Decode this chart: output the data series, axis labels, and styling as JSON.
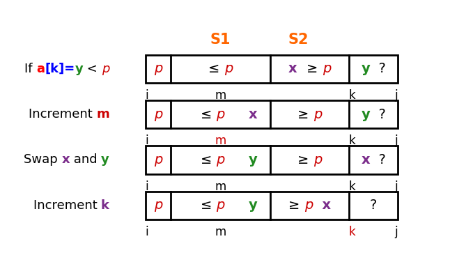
{
  "bg_color": "#FFFFFF",
  "s1_label": "S1",
  "s2_label": "S2",
  "header_color": "#FF6600",
  "fig_width": 6.46,
  "fig_height": 3.66,
  "dpi": 100,
  "rows": [
    {
      "label": [
        {
          "t": "If ",
          "c": "#000000",
          "w": "normal",
          "s": "normal"
        },
        {
          "t": "a",
          "c": "#FF0000",
          "w": "bold",
          "s": "normal"
        },
        {
          "t": "[k]=",
          "c": "#0000FF",
          "w": "bold",
          "s": "normal"
        },
        {
          "t": "y",
          "c": "#228B22",
          "w": "bold",
          "s": "normal"
        },
        {
          "t": " < ",
          "c": "#000000",
          "w": "normal",
          "s": "normal"
        },
        {
          "t": "p",
          "c": "#CC0000",
          "w": "normal",
          "s": "italic"
        }
      ],
      "cell0": [
        {
          "t": "p",
          "c": "#CC0000",
          "s": "italic",
          "w": "normal"
        }
      ],
      "cell1": [
        {
          "t": "≤ p",
          "c_list": [
            "#000000",
            "#CC0000"
          ],
          "s_list": [
            "normal",
            "italic"
          ],
          "w_list": [
            "normal",
            "normal"
          ]
        }
      ],
      "cell1_simple": {
        "t": "≤ p",
        "c1": "#000000",
        "c2": "#CC0000"
      },
      "cell2_left": {
        "t": "x",
        "c": "#7B2D8B",
        "s": "normal",
        "w": "bold"
      },
      "cell2_right": {
        "t": "≥ p",
        "c1": "#000000",
        "c2": "#CC0000"
      },
      "cell3_left": {
        "t": "y",
        "c": "#228B22",
        "s": "normal",
        "w": "bold"
      },
      "cell3_right": {
        "t": "?",
        "c": "#000000",
        "s": "normal",
        "w": "normal"
      },
      "idx": [
        {
          "t": "i",
          "c": "#000000",
          "cell": 0,
          "align": "left"
        },
        {
          "t": "m",
          "c": "#000000",
          "cell": 2,
          "align": "center"
        },
        {
          "t": "k",
          "c": "#000000",
          "cell": 3,
          "align": "left"
        },
        {
          "t": "j",
          "c": "#000000",
          "cell": 4,
          "align": "right"
        }
      ]
    },
    {
      "label": [
        {
          "t": "Increment ",
          "c": "#000000",
          "w": "normal",
          "s": "normal"
        },
        {
          "t": "m",
          "c": "#CC0000",
          "w": "bold",
          "s": "normal"
        }
      ],
      "cell0": [
        {
          "t": "p",
          "c": "#CC0000",
          "s": "italic",
          "w": "normal"
        }
      ],
      "cell2_left": {
        "t": "x",
        "c": "#7B2D8B",
        "s": "normal",
        "w": "bold"
      },
      "cell2_right": {
        "t": "≥ p",
        "c1": "#000000",
        "c2": "#CC0000"
      },
      "cell3_left": {
        "t": "y",
        "c": "#228B22",
        "s": "normal",
        "w": "bold"
      },
      "cell3_right": {
        "t": "?",
        "c": "#000000",
        "s": "normal",
        "w": "normal"
      },
      "cell1_simple": {
        "t": "≤ p",
        "c1": "#000000",
        "c2": "#CC0000"
      },
      "idx": [
        {
          "t": "i",
          "c": "#000000",
          "cell": 0,
          "align": "left"
        },
        {
          "t": "m",
          "c": "#CC0000",
          "cell": 2,
          "align": "center"
        },
        {
          "t": "k",
          "c": "#000000",
          "cell": 3,
          "align": "left"
        },
        {
          "t": "j",
          "c": "#000000",
          "cell": 4,
          "align": "right"
        }
      ]
    },
    {
      "label": [
        {
          "t": "Swap ",
          "c": "#000000",
          "w": "normal",
          "s": "normal"
        },
        {
          "t": "x",
          "c": "#7B2D8B",
          "w": "bold",
          "s": "normal"
        },
        {
          "t": " and ",
          "c": "#000000",
          "w": "normal",
          "s": "normal"
        },
        {
          "t": "y",
          "c": "#228B22",
          "w": "bold",
          "s": "normal"
        }
      ],
      "cell0": [
        {
          "t": "p",
          "c": "#CC0000",
          "s": "italic",
          "w": "normal"
        }
      ],
      "cell2_left": {
        "t": "y",
        "c": "#228B22",
        "s": "normal",
        "w": "bold"
      },
      "cell2_right": {
        "t": "≥ p",
        "c1": "#000000",
        "c2": "#CC0000"
      },
      "cell3_left": {
        "t": "x",
        "c": "#7B2D8B",
        "s": "normal",
        "w": "bold"
      },
      "cell3_right": {
        "t": "?",
        "c": "#000000",
        "s": "normal",
        "w": "normal"
      },
      "cell1_simple": {
        "t": "≤ p",
        "c1": "#000000",
        "c2": "#CC0000"
      },
      "idx": [
        {
          "t": "i",
          "c": "#000000",
          "cell": 0,
          "align": "left"
        },
        {
          "t": "m",
          "c": "#000000",
          "cell": 2,
          "align": "center"
        },
        {
          "t": "k",
          "c": "#000000",
          "cell": 3,
          "align": "left"
        },
        {
          "t": "j",
          "c": "#000000",
          "cell": 4,
          "align": "right"
        }
      ]
    },
    {
      "label": [
        {
          "t": "Increment ",
          "c": "#000000",
          "w": "normal",
          "s": "normal"
        },
        {
          "t": "k",
          "c": "#7B2D8B",
          "w": "bold",
          "s": "normal"
        }
      ],
      "cell0": [
        {
          "t": "p",
          "c": "#CC0000",
          "s": "italic",
          "w": "normal"
        }
      ],
      "cell2_left": {
        "t": "y",
        "c": "#228B22",
        "s": "normal",
        "w": "bold"
      },
      "cell2_right": {
        "t": "≥ p",
        "c1": "#000000",
        "c2": "#CC0000"
      },
      "cell3_left": {
        "t": "x",
        "c": "#7B2D8B",
        "s": "normal",
        "w": "bold"
      },
      "cell3_right": {
        "t": "?",
        "c": "#000000",
        "s": "normal",
        "w": "normal"
      },
      "cell1_simple": {
        "t": "≤ p",
        "c1": "#000000",
        "c2": "#CC0000"
      },
      "idx": [
        {
          "t": "i",
          "c": "#000000",
          "cell": 0,
          "align": "left"
        },
        {
          "t": "m",
          "c": "#000000",
          "cell": 2,
          "align": "center"
        },
        {
          "t": "k",
          "c": "#CC0000",
          "cell": 3,
          "align": "left"
        },
        {
          "t": "j",
          "c": "#000000",
          "cell": 4,
          "align": "right"
        }
      ]
    }
  ]
}
